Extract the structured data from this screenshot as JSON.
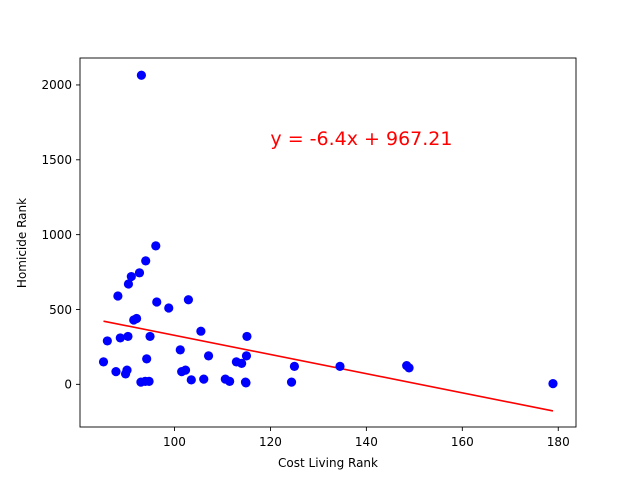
{
  "chart_data": {
    "type": "scatter",
    "title": "",
    "xlabel": "Cost Living Rank",
    "ylabel": "Homicide Rank",
    "xlim": [
      80.3,
      183.7
    ],
    "ylim": [
      -285,
      2180
    ],
    "xticks": [
      100,
      120,
      140,
      160,
      180
    ],
    "yticks": [
      0,
      500,
      1000,
      1500,
      2000
    ],
    "grid": false,
    "legend": "none",
    "colors": {
      "points": "#0000ff",
      "trendline": "#ff0000",
      "annotation": "#ff0000"
    },
    "annotation": {
      "text": "y = -6.4x + 967.21",
      "x": 120,
      "y": 1600
    },
    "trendline": {
      "slope": -6.4,
      "intercept": 967.21,
      "x_range": [
        85.2,
        178.9
      ]
    },
    "points": [
      {
        "x": 85.2,
        "y": 150
      },
      {
        "x": 86,
        "y": 290
      },
      {
        "x": 87.8,
        "y": 85
      },
      {
        "x": 88.2,
        "y": 590
      },
      {
        "x": 88.7,
        "y": 310
      },
      {
        "x": 89.8,
        "y": 70
      },
      {
        "x": 90.1,
        "y": 95
      },
      {
        "x": 90.3,
        "y": 320
      },
      {
        "x": 90.4,
        "y": 670
      },
      {
        "x": 91,
        "y": 720
      },
      {
        "x": 91.5,
        "y": 430
      },
      {
        "x": 92.1,
        "y": 440
      },
      {
        "x": 92.7,
        "y": 745
      },
      {
        "x": 93,
        "y": 15
      },
      {
        "x": 93.1,
        "y": 2065
      },
      {
        "x": 93.9,
        "y": 20
      },
      {
        "x": 94.0,
        "y": 825
      },
      {
        "x": 94.2,
        "y": 170
      },
      {
        "x": 94.7,
        "y": 20
      },
      {
        "x": 94.9,
        "y": 320
      },
      {
        "x": 96.1,
        "y": 925
      },
      {
        "x": 96.3,
        "y": 550
      },
      {
        "x": 98.8,
        "y": 510
      },
      {
        "x": 101.2,
        "y": 230
      },
      {
        "x": 101.5,
        "y": 85
      },
      {
        "x": 102.3,
        "y": 95
      },
      {
        "x": 102.9,
        "y": 565
      },
      {
        "x": 103.5,
        "y": 30
      },
      {
        "x": 105.5,
        "y": 355
      },
      {
        "x": 106.1,
        "y": 35
      },
      {
        "x": 107.1,
        "y": 190
      },
      {
        "x": 110.6,
        "y": 35
      },
      {
        "x": 111.5,
        "y": 20
      },
      {
        "x": 112.9,
        "y": 150
      },
      {
        "x": 114,
        "y": 140
      },
      {
        "x": 114.8,
        "y": 15
      },
      {
        "x": 114.9,
        "y": 10
      },
      {
        "x": 115,
        "y": 190
      },
      {
        "x": 115.1,
        "y": 320
      },
      {
        "x": 124.4,
        "y": 15
      },
      {
        "x": 125,
        "y": 120
      },
      {
        "x": 134.5,
        "y": 120
      },
      {
        "x": 148.4,
        "y": 125
      },
      {
        "x": 148.9,
        "y": 110
      },
      {
        "x": 178.9,
        "y": 5
      }
    ]
  }
}
